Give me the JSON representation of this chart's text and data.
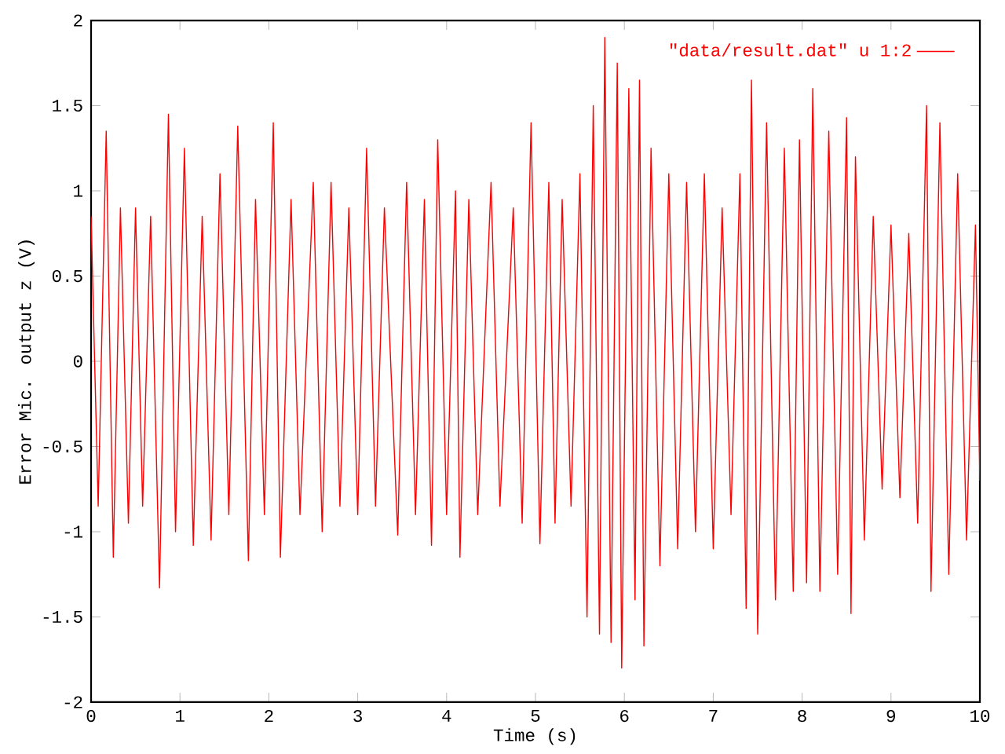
{
  "chart_data": {
    "type": "line",
    "xlabel": "Time (s)",
    "ylabel": "Error Mic. output z (V)",
    "xlim": [
      0,
      10
    ],
    "ylim": [
      -2,
      2
    ],
    "xticks": [
      0,
      1,
      2,
      3,
      4,
      5,
      6,
      7,
      8,
      9,
      10
    ],
    "yticks": [
      -2,
      -1.5,
      -1,
      -0.5,
      0,
      0.5,
      1,
      1.5,
      2
    ],
    "grid": false,
    "legend": "top right",
    "marker": "none",
    "line_style": "solid",
    "series": [
      {
        "name": "\"data/result.dat\" u 1:2",
        "color": "#ff0000",
        "x": [
          0,
          0.08,
          0.17,
          0.25,
          0.33,
          0.42,
          0.5,
          0.58,
          0.67,
          0.77,
          0.87,
          0.95,
          1.05,
          1.15,
          1.25,
          1.35,
          1.45,
          1.55,
          1.65,
          1.77,
          1.85,
          1.95,
          2.05,
          2.13,
          2.25,
          2.35,
          2.5,
          2.6,
          2.7,
          2.8,
          2.9,
          3.0,
          3.1,
          3.2,
          3.3,
          3.45,
          3.55,
          3.65,
          3.75,
          3.83,
          3.9,
          4.0,
          4.1,
          4.15,
          4.25,
          4.35,
          4.5,
          4.6,
          4.75,
          4.85,
          4.95,
          5.05,
          5.15,
          5.22,
          5.3,
          5.4,
          5.5,
          5.58,
          5.65,
          5.72,
          5.78,
          5.85,
          5.92,
          5.97,
          6.05,
          6.12,
          6.17,
          6.22,
          6.3,
          6.4,
          6.5,
          6.6,
          6.7,
          6.8,
          6.9,
          7.0,
          7.1,
          7.2,
          7.3,
          7.37,
          7.43,
          7.5,
          7.6,
          7.7,
          7.8,
          7.9,
          7.97,
          8.05,
          8.12,
          8.2,
          8.3,
          8.4,
          8.5,
          8.55,
          8.6,
          8.7,
          8.8,
          8.9,
          9.0,
          9.1,
          9.2,
          9.3,
          9.4,
          9.45,
          9.55,
          9.65,
          9.75,
          9.85,
          9.95,
          10
        ],
        "values": [
          0.85,
          -0.85,
          1.35,
          -1.15,
          0.9,
          -0.95,
          0.9,
          -0.85,
          0.85,
          -1.33,
          1.45,
          -1.0,
          1.25,
          -1.08,
          0.85,
          -1.05,
          1.1,
          -0.9,
          1.38,
          -1.17,
          0.95,
          -0.9,
          1.4,
          -1.15,
          0.95,
          -0.9,
          1.05,
          -1.0,
          1.05,
          -0.85,
          0.9,
          -0.9,
          1.25,
          -0.85,
          0.9,
          -1.02,
          1.05,
          -0.9,
          0.95,
          -1.08,
          1.3,
          -0.9,
          1.0,
          -1.15,
          0.95,
          -0.9,
          1.05,
          -0.85,
          0.9,
          -0.95,
          1.4,
          -1.07,
          1.05,
          -0.95,
          0.95,
          -0.85,
          1.1,
          -1.5,
          1.5,
          -1.6,
          1.9,
          -1.65,
          1.75,
          -1.8,
          1.6,
          -1.4,
          1.65,
          -1.67,
          1.25,
          -1.2,
          1.1,
          -1.1,
          1.05,
          -1.0,
          1.1,
          -1.1,
          0.9,
          -0.9,
          1.1,
          -1.45,
          1.65,
          -1.6,
          1.4,
          -1.4,
          1.25,
          -1.35,
          1.3,
          -1.3,
          1.6,
          -1.35,
          1.35,
          -1.25,
          1.43,
          -1.48,
          1.2,
          -1.05,
          0.85,
          -0.75,
          0.8,
          -0.8,
          0.75,
          -0.95,
          1.5,
          -1.35,
          1.4,
          -1.25,
          1.1,
          -1.05,
          0.8,
          -0.7
        ]
      }
    ]
  }
}
